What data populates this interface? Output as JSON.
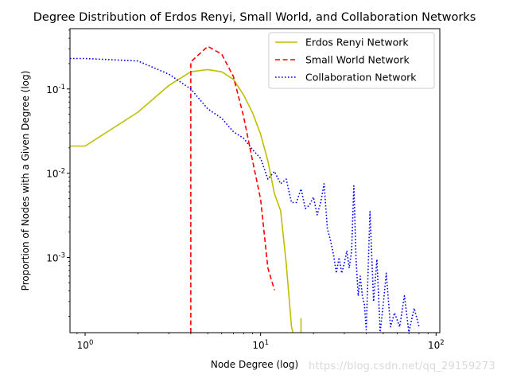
{
  "chart_data": {
    "type": "line",
    "title": "Degree Distribution of Erdos Renyi, Small World, and Collaboration Networks",
    "xlabel": "Node Degree (log)",
    "ylabel": "Proportion of Nodes with a Given Degree (log)",
    "xscale": "log",
    "yscale": "log",
    "xlim": [
      0.82,
      105
    ],
    "ylim": [
      0.000128,
      0.52
    ],
    "x_ticks": [
      {
        "value": 1,
        "label": "10^0"
      },
      {
        "value": 10,
        "label": "10^1"
      },
      {
        "value": 100,
        "label": "10^2"
      }
    ],
    "y_ticks": [
      {
        "value": 0.001,
        "label": "10^-3"
      },
      {
        "value": 0.01,
        "label": "10^-2"
      },
      {
        "value": 0.1,
        "label": "10^-1"
      }
    ],
    "grid": false,
    "legend": "top-right",
    "series": [
      {
        "name": "Erdos Renyi Network",
        "color": "#bfbf00",
        "style": "solid",
        "x": [
          0.82,
          1,
          2,
          3,
          4,
          5,
          6,
          7,
          8,
          9,
          10,
          11,
          12,
          13,
          14,
          15,
          15.3
        ],
        "y": [
          0.021,
          0.021,
          0.053,
          0.11,
          0.16,
          0.17,
          0.16,
          0.13,
          0.085,
          0.052,
          0.029,
          0.014,
          0.0057,
          0.0036,
          0.00085,
          0.00015,
          0.000128
        ]
      },
      {
        "name": "Small World Network",
        "color": "#ff0000",
        "style": "dashed",
        "x": [
          4,
          4,
          5,
          6,
          7,
          8,
          9,
          10,
          11,
          12
        ],
        "y": [
          0.000128,
          0.21,
          0.32,
          0.26,
          0.14,
          0.047,
          0.014,
          0.0049,
          0.00075,
          0.00041
        ]
      },
      {
        "name": "Collaboration Network",
        "color": "#0000ff",
        "style": "dotted",
        "x": [
          0.82,
          1,
          2,
          3,
          4,
          5,
          6,
          7,
          8,
          9,
          10,
          11,
          12,
          13,
          14,
          15,
          16,
          17,
          18,
          19,
          20,
          21,
          22,
          23,
          24,
          25,
          26,
          27,
          28,
          29,
          30,
          31,
          32,
          33,
          34,
          35,
          36,
          37,
          38,
          39,
          40,
          42,
          44,
          46,
          48,
          50,
          52,
          55,
          58,
          62,
          66,
          70,
          75,
          80
        ],
        "y": [
          0.23,
          0.23,
          0.215,
          0.15,
          0.1,
          0.058,
          0.045,
          0.031,
          0.026,
          0.019,
          0.015,
          0.0085,
          0.0105,
          0.0075,
          0.0085,
          0.0045,
          0.0045,
          0.0065,
          0.0038,
          0.0042,
          0.0052,
          0.0032,
          0.0045,
          0.0075,
          0.0022,
          0.0016,
          0.0011,
          0.00065,
          0.001,
          0.00065,
          0.00085,
          0.0012,
          0.00075,
          0.0012,
          0.0071,
          0.00095,
          0.00035,
          0.0006,
          0.00035,
          0.00028,
          0.000138,
          0.0035,
          0.0003,
          0.00095,
          0.00013,
          0.00028,
          0.00065,
          0.00015,
          0.00022,
          0.00015,
          0.00035,
          0.00013,
          0.00025,
          0.00015
        ]
      }
    ]
  },
  "watermark": "https://blog.csdn.net/qq_29159273"
}
